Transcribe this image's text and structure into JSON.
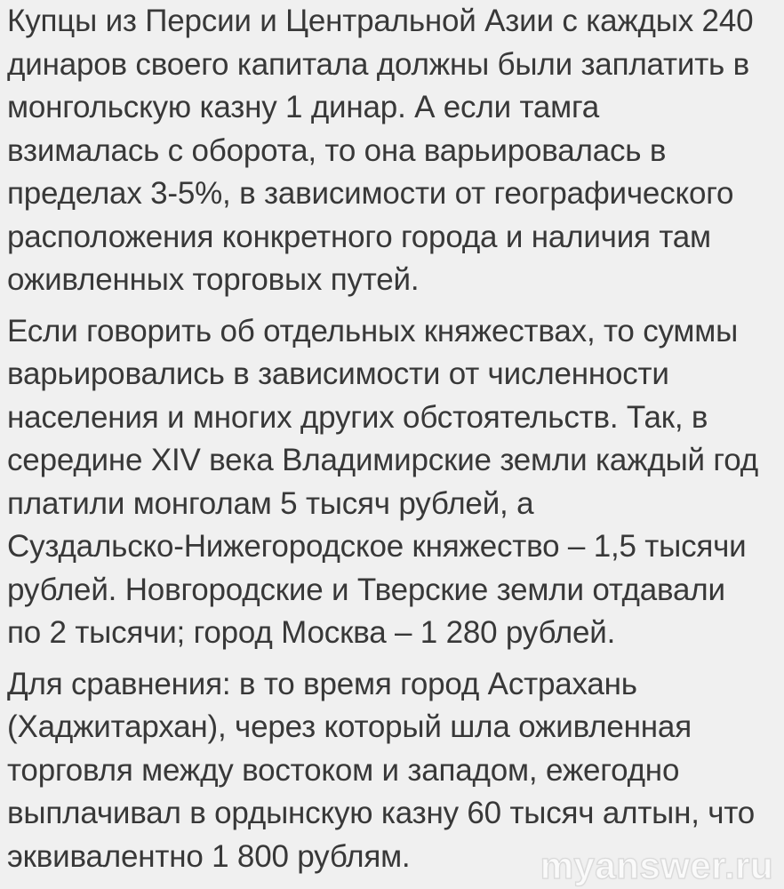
{
  "page": {
    "background_color": "#f0f0f0",
    "text_color": "#383838",
    "watermark_color": "#ffffff"
  },
  "article": {
    "paragraphs": [
      {
        "lines": [
          "Купцы из Персии и Центральной Азии с каждых 240",
          "динаров своего капитала должны были заплатить в",
          "монгольскую казну 1 динар. А если тамга",
          "взималась с оборота, то она варьировалась в",
          "пределах 3-5%, в зависимости от географического",
          "расположения конкретного города и наличия там",
          "оживленных торговых путей."
        ]
      },
      {
        "lines": [
          "Если говорить об отдельных княжествах, то суммы",
          "варьировались в зависимости от численности",
          "населения и многих других обстоятельств. Так, в",
          "середине XIV века Владимирские земли каждый год",
          "платили монголам 5 тысяч рублей, а",
          "Суздальско-Нижегородское княжество – 1,5 тысячи",
          "рублей. Новгородские и Тверские земли отдавали",
          "по 2 тысячи; город Москва – 1 280 рублей."
        ]
      },
      {
        "lines": [
          "Для сравнения: в то время город Астрахань",
          "(Хаджитархан), через который шла оживленная",
          "торговля между востоком и западом, ежегодно",
          "выплачивал в ордынскую казну 60 тысяч алтын, что",
          "эквивалентно 1 800 рублям."
        ]
      }
    ]
  },
  "watermark": {
    "text": "myanswer.ru"
  }
}
